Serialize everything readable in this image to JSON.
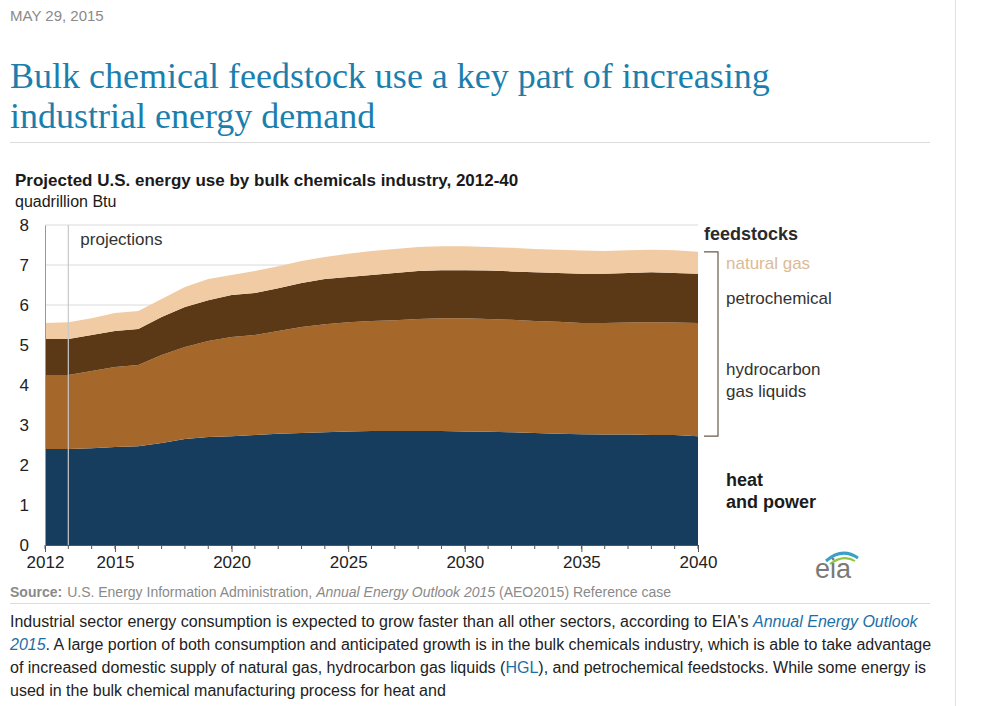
{
  "page": {
    "date": "MAY 29, 2015",
    "headline": "Bulk chemical feedstock use a key part of increasing industrial energy demand",
    "logo": "eia",
    "body": [
      {
        "text": "Industrial sector energy consumption is expected to grow faster than all other sectors, according to EIA's "
      },
      {
        "text": "Annual Energy Outlook 2015",
        "link": true,
        "italic": true
      },
      {
        "text": ". A large portion of both consumption and anticipated growth is in the bulk chemicals industry, which is able to take advantage of increased domestic supply of natural gas, hydrocarbon gas liquids ("
      },
      {
        "text": "HGL",
        "link": true
      },
      {
        "text": "), and petrochemical feedstocks. While some energy is used in the bulk chemical manufacturing process for heat and"
      }
    ]
  },
  "chart_data": {
    "type": "area",
    "stacked": true,
    "grid": true,
    "title": "Projected U.S. energy use by bulk chemicals industry, 2012-40",
    "subtitle": "quadrillion Btu",
    "x": [
      2012,
      2013,
      2014,
      2015,
      2016,
      2017,
      2018,
      2019,
      2020,
      2021,
      2022,
      2023,
      2024,
      2025,
      2026,
      2027,
      2028,
      2029,
      2030,
      2031,
      2032,
      2033,
      2034,
      2035,
      2036,
      2037,
      2038,
      2039,
      2040
    ],
    "xlim": [
      2012,
      2040
    ],
    "xticks": [
      2012,
      2015,
      2020,
      2025,
      2030,
      2035,
      2040
    ],
    "ylim": [
      0,
      8
    ],
    "yticks": [
      0,
      1,
      2,
      3,
      4,
      5,
      6,
      7,
      8
    ],
    "series": [
      {
        "name": "heat and power",
        "color": "#173d5e",
        "values": [
          2.4,
          2.4,
          2.42,
          2.45,
          2.47,
          2.55,
          2.65,
          2.7,
          2.72,
          2.75,
          2.78,
          2.8,
          2.82,
          2.84,
          2.85,
          2.85,
          2.85,
          2.85,
          2.84,
          2.83,
          2.82,
          2.8,
          2.78,
          2.77,
          2.76,
          2.76,
          2.75,
          2.75,
          2.72
        ]
      },
      {
        "name": "hydrocarbon gas liquids",
        "color": "#a5682a",
        "values": [
          1.85,
          1.85,
          1.93,
          2,
          2.03,
          2.2,
          2.3,
          2.4,
          2.48,
          2.5,
          2.57,
          2.65,
          2.7,
          2.73,
          2.75,
          2.77,
          2.8,
          2.82,
          2.83,
          2.82,
          2.81,
          2.8,
          2.8,
          2.78,
          2.79,
          2.8,
          2.82,
          2.81,
          2.83
        ]
      },
      {
        "name": "petrochemical",
        "color": "#5c3916",
        "values": [
          0.9,
          0.9,
          0.9,
          0.9,
          0.9,
          0.95,
          1,
          1.02,
          1.05,
          1.05,
          1.07,
          1.1,
          1.13,
          1.13,
          1.15,
          1.18,
          1.2,
          1.2,
          1.2,
          1.21,
          1.21,
          1.22,
          1.22,
          1.23,
          1.23,
          1.24,
          1.25,
          1.24,
          1.23
        ]
      },
      {
        "name": "natural gas",
        "color": "#f1cba4",
        "values": [
          0.4,
          0.42,
          0.42,
          0.45,
          0.45,
          0.45,
          0.5,
          0.53,
          0.5,
          0.55,
          0.55,
          0.55,
          0.55,
          0.58,
          0.6,
          0.6,
          0.6,
          0.6,
          0.6,
          0.59,
          0.59,
          0.58,
          0.58,
          0.58,
          0.57,
          0.57,
          0.56,
          0.57,
          0.55
        ]
      }
    ],
    "annotations": [
      {
        "text": "projections",
        "x": 2013
      },
      {
        "text": "feedstocks",
        "series": [
          "natural gas",
          "petrochemical",
          "hydrocarbon gas liquids"
        ]
      }
    ],
    "source": {
      "label": "Source:",
      "parts": [
        {
          "text": "U.S. Energy Information Administration, "
        },
        {
          "text": "Annual Energy Outlook 2015",
          "italic": true
        },
        {
          "text": " (AEO2015) Reference case"
        }
      ]
    }
  }
}
